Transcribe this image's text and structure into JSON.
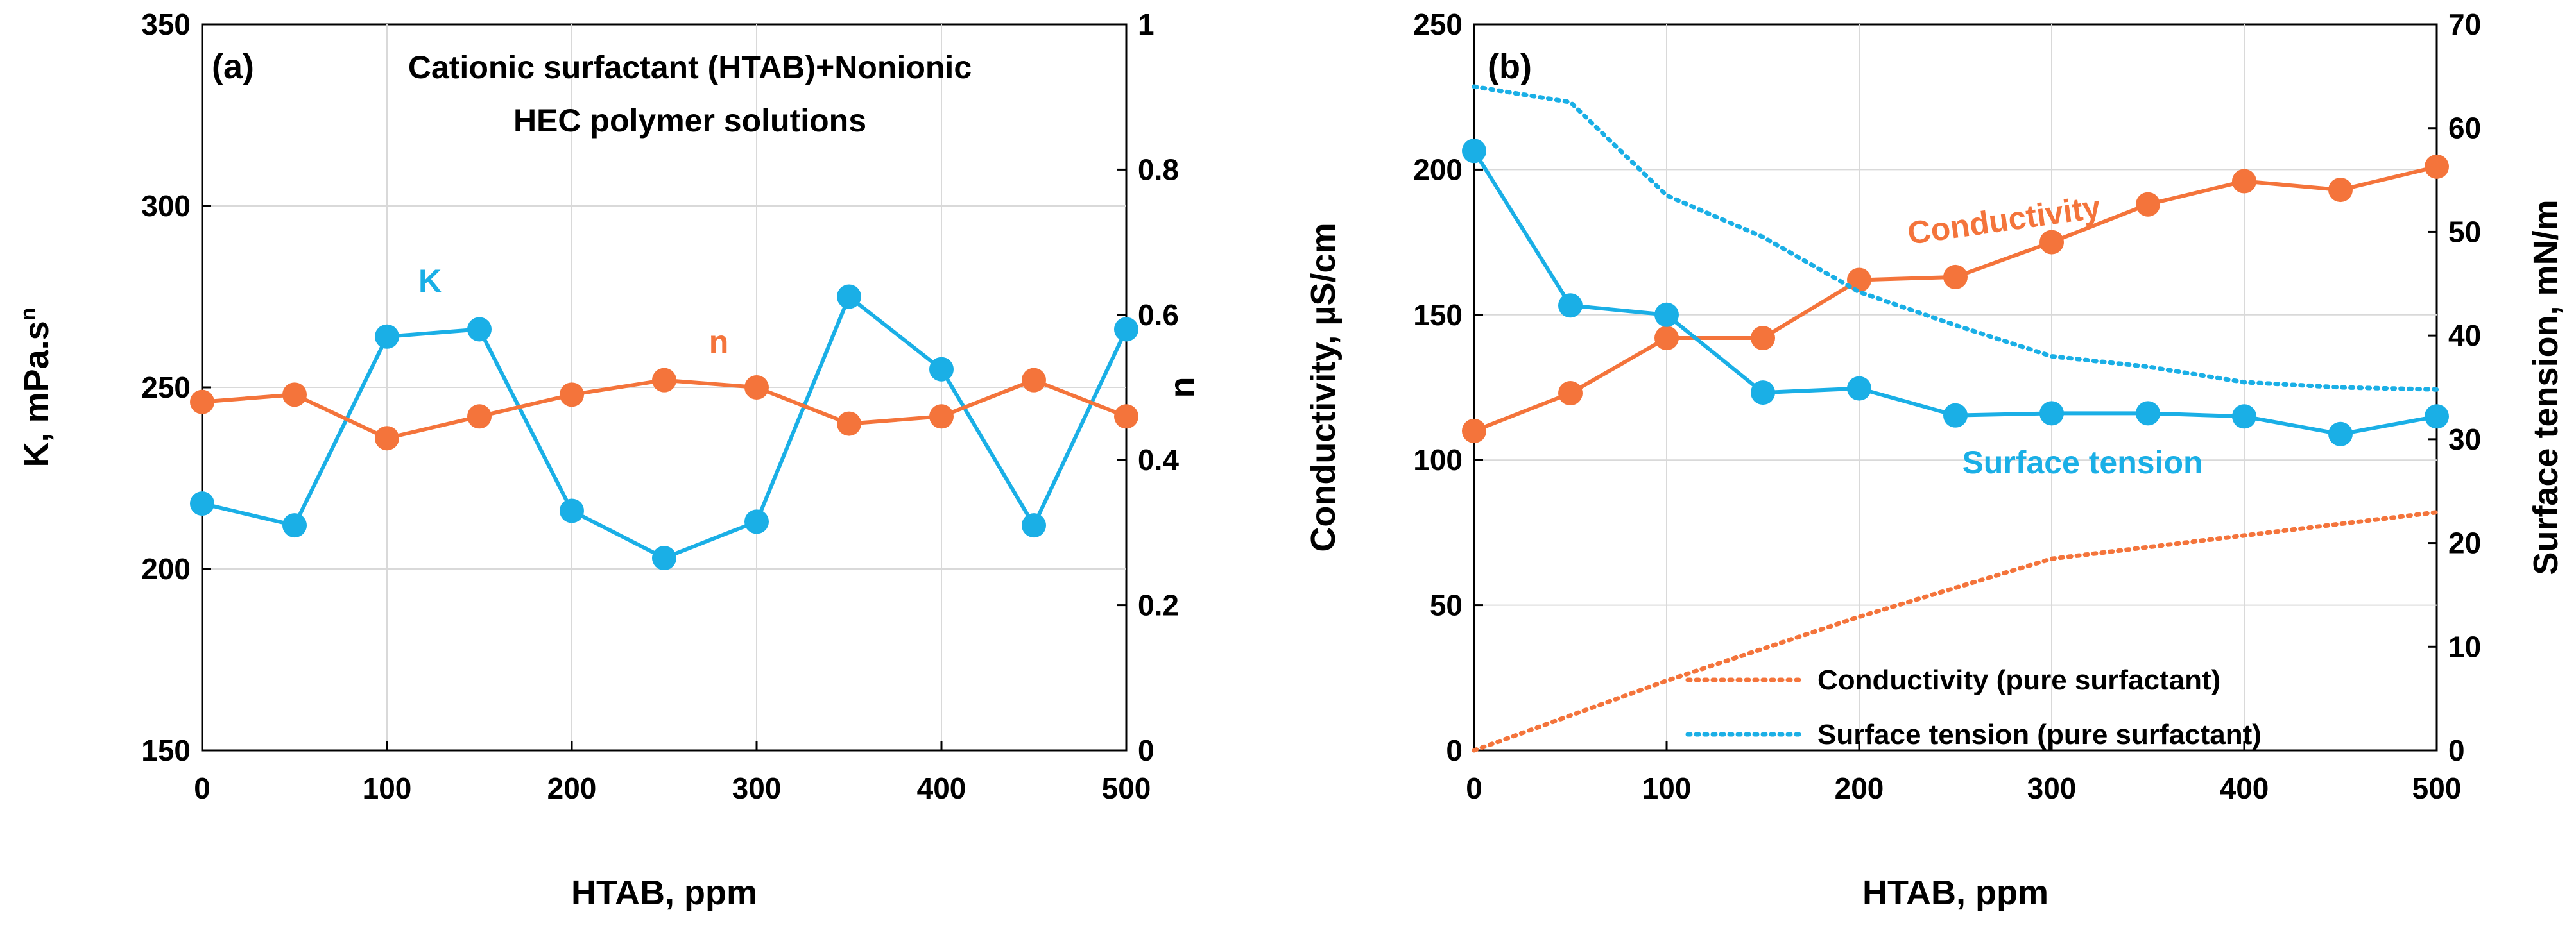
{
  "colors": {
    "orange": "#F4743B",
    "blue": "#1AAFE6",
    "grid": "#D9D9D9"
  },
  "chart_data": [
    {
      "panel": "(a)",
      "type": "line",
      "title_lines": [
        "Cationic surfactant (HTAB)+Nonionic",
        "HEC polymer solutions"
      ],
      "xlabel": "HTAB, ppm",
      "ylabel_left": "K, mPa.s",
      "ylabel_left_sup": "n",
      "ylabel_right": "n",
      "xlim": [
        0,
        500
      ],
      "ylim_left": [
        150,
        350
      ],
      "ylim_right": [
        0,
        1
      ],
      "xticks": [
        "0",
        "100",
        "200",
        "300",
        "400",
        "500"
      ],
      "yticks_left": [
        "150",
        "200",
        "250",
        "300",
        "350"
      ],
      "yticks_right": [
        "0",
        "0.2",
        "0.4",
        "0.6",
        "0.8",
        "1"
      ],
      "x": [
        0,
        50,
        100,
        150,
        200,
        250,
        300,
        350,
        400,
        450,
        500
      ],
      "series": [
        {
          "name": "K",
          "label": "K",
          "axis": "left",
          "color": "#1AAFE6",
          "style": "solid-marker",
          "values": [
            218,
            212,
            264,
            266,
            216,
            203,
            213,
            275,
            255,
            212,
            266
          ]
        },
        {
          "name": "n",
          "label": "n",
          "axis": "right",
          "color": "#F4743B",
          "style": "solid-marker",
          "values": [
            0.48,
            0.49,
            0.43,
            0.46,
            0.49,
            0.51,
            0.5,
            0.45,
            0.46,
            0.51,
            0.46
          ]
        }
      ]
    },
    {
      "panel": "(b)",
      "type": "line",
      "xlabel": "HTAB, ppm",
      "ylabel_left": "Conductivity, µS/cm",
      "ylabel_right": "Surface tension, mN/m",
      "xlim": [
        0,
        500
      ],
      "ylim_left": [
        0,
        250
      ],
      "ylim_right": [
        0,
        70
      ],
      "xticks": [
        "0",
        "100",
        "200",
        "300",
        "400",
        "500"
      ],
      "yticks_left": [
        "0",
        "50",
        "100",
        "150",
        "200",
        "250"
      ],
      "yticks_right": [
        "0",
        "10",
        "20",
        "30",
        "40",
        "50",
        "60",
        "70"
      ],
      "x": [
        0,
        50,
        100,
        150,
        200,
        250,
        300,
        350,
        400,
        450,
        500
      ],
      "series": [
        {
          "name": "Conductivity",
          "label": "Conductivity",
          "axis": "left",
          "color": "#F4743B",
          "style": "solid-marker",
          "values": [
            110,
            123,
            142,
            142,
            162,
            163,
            175,
            188,
            196,
            193,
            201
          ]
        },
        {
          "name": "Surface tension",
          "label": "Surface tension",
          "axis": "right",
          "color": "#1AAFE6",
          "style": "solid-marker",
          "values": [
            57.8,
            42.9,
            42.0,
            34.5,
            34.9,
            32.3,
            32.5,
            32.5,
            32.2,
            30.5,
            32.2
          ]
        },
        {
          "name": "Conductivity (pure surfactant)",
          "axis": "left",
          "color": "#F4743B",
          "style": "dotted",
          "x": [
            0,
            100,
            200,
            300,
            400,
            500
          ],
          "values": [
            0,
            24,
            46,
            66,
            74,
            82
          ]
        },
        {
          "name": "Surface tension (pure surfactant)",
          "axis": "right",
          "color": "#1AAFE6",
          "style": "dotted",
          "x": [
            0,
            50,
            100,
            150,
            200,
            250,
            300,
            350,
            400,
            450,
            500
          ],
          "values": [
            64,
            62.5,
            53.5,
            49.5,
            44.2,
            41,
            38,
            37,
            35.5,
            35,
            34.8
          ]
        }
      ],
      "legend": {
        "position": "bottom-right",
        "items": [
          "Conductivity (pure surfactant)",
          "Surface tension (pure surfactant)"
        ]
      }
    }
  ]
}
